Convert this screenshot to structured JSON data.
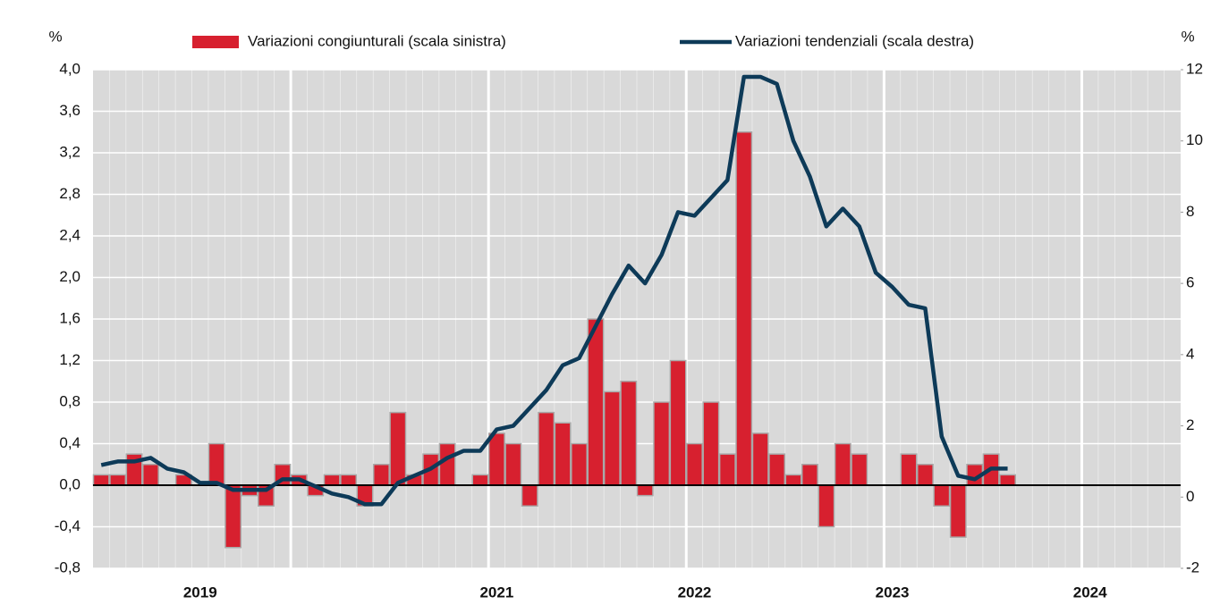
{
  "chart_data": {
    "type": "bar-line",
    "y_label": "%",
    "y2_label": "%",
    "legend": "top",
    "categories": [
      null,
      null,
      null,
      null,
      null,
      null,
      "2019",
      null,
      null,
      null,
      null,
      null,
      null,
      null,
      null,
      null,
      null,
      null,
      null,
      null,
      null,
      null,
      null,
      null,
      "2021",
      null,
      null,
      null,
      null,
      null,
      null,
      null,
      null,
      null,
      null,
      null,
      "2022",
      null,
      null,
      null,
      null,
      null,
      null,
      null,
      null,
      null,
      null,
      null,
      "2023",
      null,
      null,
      null,
      null,
      null,
      null,
      null,
      null,
      null,
      null,
      null,
      "2024",
      null,
      null,
      null,
      null,
      null
    ],
    "series": [
      {
        "name": "Variazioni congiunturali (scala sinistra)",
        "type": "bar",
        "color": "#d7202f",
        "values": [
          0.1,
          0.1,
          0.3,
          0.2,
          0.0,
          0.1,
          0.0,
          0.4,
          -0.6,
          -0.1,
          -0.2,
          0.2,
          0.1,
          -0.1,
          0.1,
          0.1,
          -0.2,
          0.2,
          0.7,
          0.1,
          0.3,
          0.4,
          0.0,
          0.1,
          0.5,
          0.4,
          -0.2,
          0.7,
          0.6,
          0.4,
          1.6,
          0.9,
          1.0,
          -0.1,
          0.8,
          1.2,
          0.4,
          0.8,
          0.3,
          3.4,
          0.5,
          0.3,
          0.1,
          0.2,
          -0.4,
          0.4,
          0.3,
          0.0,
          0.0,
          0.3,
          0.2,
          -0.2,
          -0.5,
          0.2,
          0.3,
          0.1,
          null,
          null,
          null,
          null,
          null,
          null,
          null,
          null,
          null,
          null
        ]
      },
      {
        "name": "Variazioni tendenziali (scala destra)",
        "type": "line",
        "axis": "y2",
        "color": "#0d3a58",
        "values": [
          0.9,
          1.0,
          1.0,
          1.1,
          0.8,
          0.7,
          0.4,
          0.4,
          0.2,
          0.2,
          0.2,
          0.5,
          0.5,
          0.3,
          0.1,
          0.0,
          -0.2,
          -0.2,
          0.4,
          0.6,
          0.8,
          1.1,
          1.3,
          1.3,
          1.9,
          2.0,
          2.5,
          3.0,
          3.7,
          3.9,
          4.8,
          5.7,
          6.5,
          6.0,
          6.8,
          8.0,
          7.9,
          8.4,
          8.9,
          11.8,
          11.8,
          11.6,
          10.0,
          9.0,
          7.6,
          8.1,
          7.6,
          6.3,
          5.9,
          5.4,
          5.3,
          1.7,
          0.6,
          0.5,
          0.8,
          0.8,
          null,
          null,
          null,
          null,
          null,
          null,
          null,
          null,
          null,
          null
        ]
      }
    ],
    "ylim": [
      -0.8,
      4.0
    ],
    "yticks": [
      {
        "value": -0.8,
        "label": "-0,8"
      },
      {
        "value": -0.4,
        "label": "-0,4"
      },
      {
        "value": 0,
        "label": "0,0"
      },
      {
        "value": 0.4,
        "label": "0,4"
      },
      {
        "value": 0.8,
        "label": "0,8"
      },
      {
        "value": 1.2,
        "label": "1,2"
      },
      {
        "value": 1.6,
        "label": "1,6"
      },
      {
        "value": 2.0,
        "label": "2,0"
      },
      {
        "value": 2.4,
        "label": "2,4"
      },
      {
        "value": 2.8,
        "label": "2,8"
      },
      {
        "value": 3.2,
        "label": "3,2"
      },
      {
        "value": 3.6,
        "label": "3,6"
      },
      {
        "value": 4.0,
        "label": "4,0"
      }
    ],
    "y2lim": [
      -2,
      12
    ],
    "y2ticks": [
      -2,
      0,
      2,
      4,
      6,
      8,
      10,
      12
    ],
    "grid": true
  }
}
